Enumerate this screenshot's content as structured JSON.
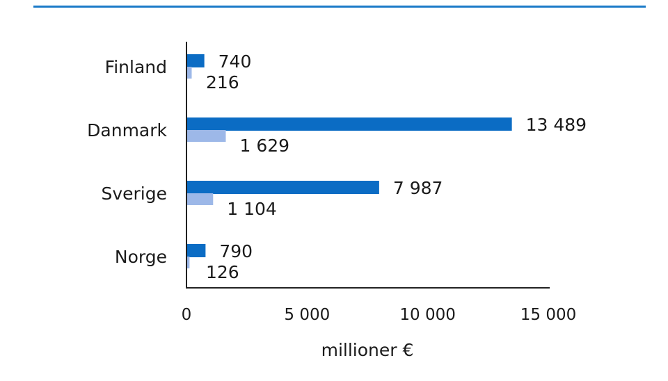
{
  "chart_data": {
    "type": "bar",
    "orientation": "horizontal",
    "categories": [
      "Finland",
      "Danmark",
      "Sverige",
      "Norge"
    ],
    "series": [
      {
        "name": "series-1",
        "color": "#0b6cc4",
        "values": [
          740,
          13489,
          7987,
          790
        ],
        "value_labels": [
          "740",
          "13 489",
          "7 987",
          "790"
        ]
      },
      {
        "name": "series-2",
        "color": "#9db8e8",
        "values": [
          216,
          1629,
          1104,
          126
        ],
        "value_labels": [
          "216",
          "1 629",
          "1 104",
          "126"
        ]
      }
    ],
    "xlim": [
      0,
      15000
    ],
    "x_ticks": [
      0,
      5000,
      10000,
      15000
    ],
    "x_tick_labels": [
      "0",
      "5 000",
      "10 000",
      "15 000"
    ],
    "xlabel": "millioner €",
    "ylabel": "",
    "grid": false,
    "legend": "none"
  },
  "header_rule_color": "#1a7ac8"
}
